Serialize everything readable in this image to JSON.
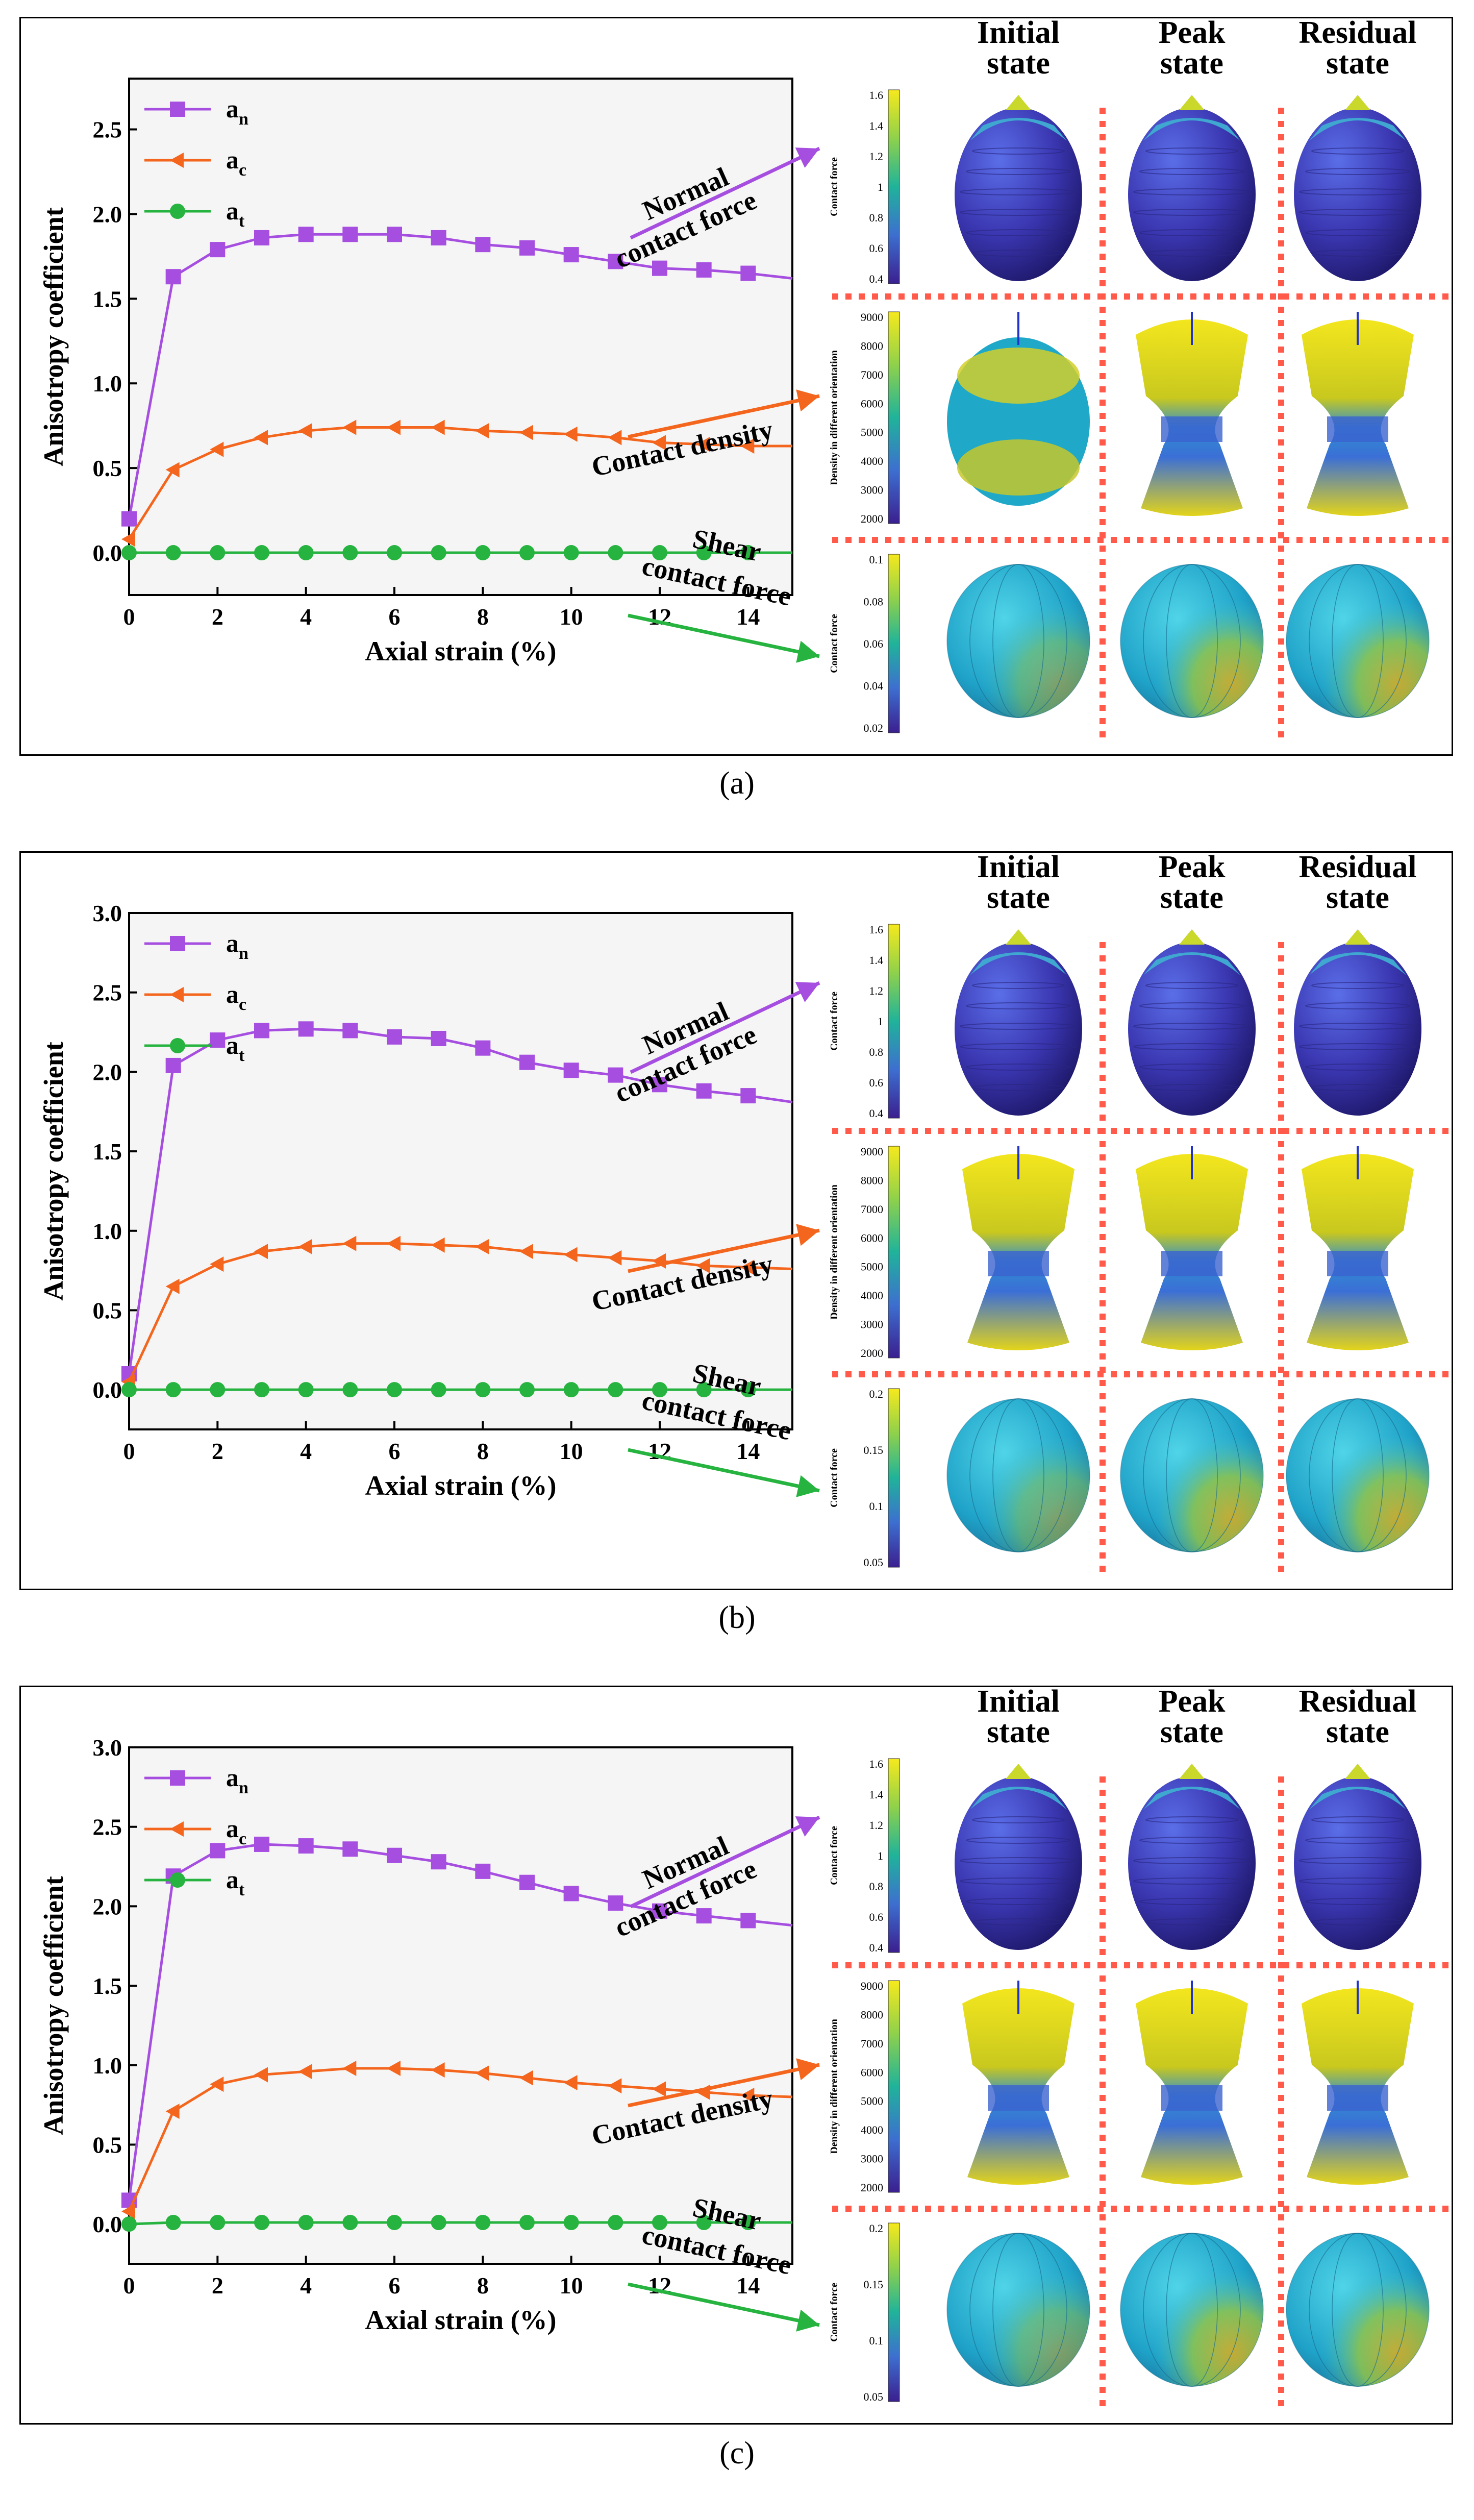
{
  "colors": {
    "an": "#a64ee0",
    "ac": "#f4661d",
    "at": "#26b33f",
    "grid_sep": "#ff5a4a",
    "plot_bg": "#f5f5f5"
  },
  "column_headers": [
    [
      "Initial",
      "state"
    ],
    [
      "Peak",
      "state"
    ],
    [
      "Residual",
      "state"
    ]
  ],
  "arrow_labels": {
    "normal": [
      "Normal",
      "contact force"
    ],
    "density": [
      "Contact density"
    ],
    "shear": [
      "Shear",
      "contact force"
    ]
  },
  "colorbar_titles": {
    "force": "Contact force",
    "density": "Density in different orientation"
  },
  "colorbars": [
    {
      "force_ticks": [
        "1.6",
        "1.4",
        "1.2",
        "1",
        "0.8",
        "0.6",
        "0.4"
      ],
      "density_ticks": [
        "9000",
        "8000",
        "7000",
        "6000",
        "5000",
        "4000",
        "3000",
        "2000"
      ],
      "shear_ticks": [
        "0.1",
        "0.08",
        "0.06",
        "0.04",
        "0.02"
      ]
    },
    {
      "force_ticks": [
        "1.6",
        "1.4",
        "1.2",
        "1",
        "0.8",
        "0.6",
        "0.4"
      ],
      "density_ticks": [
        "9000",
        "8000",
        "7000",
        "6000",
        "5000",
        "4000",
        "3000",
        "2000"
      ],
      "shear_ticks": [
        "0.2",
        "0.15",
        "0.1",
        "0.05"
      ]
    },
    {
      "force_ticks": [
        "1.6",
        "1.4",
        "1.2",
        "1",
        "0.8",
        "0.6",
        "0.4"
      ],
      "density_ticks": [
        "9000",
        "8000",
        "7000",
        "6000",
        "5000",
        "4000",
        "3000",
        "2000"
      ],
      "shear_ticks": [
        "0.2",
        "0.15",
        "0.1",
        "0.05"
      ]
    }
  ],
  "captions": [
    "(a)",
    "(b)",
    "(c)"
  ],
  "chart_data": [
    {
      "type": "line",
      "xlabel": "Axial strain (%)",
      "ylabel": "Anisotropy coefficient",
      "xlim": [
        0,
        15
      ],
      "ylim": [
        -0.25,
        2.8
      ],
      "xticks": [
        "0",
        "2",
        "4",
        "6",
        "8",
        "10",
        "12",
        "14"
      ],
      "yticks": [
        "0.0",
        "0.5",
        "1.0",
        "1.5",
        "2.0",
        "2.5"
      ],
      "x": [
        0,
        1,
        2,
        3,
        4,
        5,
        6,
        7,
        8,
        9,
        10,
        11,
        12,
        13,
        14,
        15
      ],
      "series": [
        {
          "name": "a_n",
          "sym": "a",
          "sub": "n",
          "marker": "square",
          "values": [
            0.2,
            1.63,
            1.79,
            1.86,
            1.88,
            1.88,
            1.88,
            1.86,
            1.82,
            1.8,
            1.76,
            1.72,
            1.68,
            1.67,
            1.65,
            1.62
          ]
        },
        {
          "name": "a_c",
          "sym": "a",
          "sub": "c",
          "marker": "triangle",
          "values": [
            0.08,
            0.49,
            0.61,
            0.68,
            0.72,
            0.74,
            0.74,
            0.74,
            0.72,
            0.71,
            0.7,
            0.68,
            0.65,
            0.64,
            0.63,
            0.63
          ]
        },
        {
          "name": "a_t",
          "sym": "a",
          "sub": "t",
          "marker": "circle",
          "values": [
            0.0,
            0.0,
            0.0,
            0.0,
            0.0,
            0.0,
            0.0,
            0.0,
            0.0,
            0.0,
            0.0,
            0.0,
            0.0,
            0.0,
            0.0,
            0.0
          ]
        }
      ]
    },
    {
      "type": "line",
      "xlabel": "Axial strain (%)",
      "ylabel": "Anisotropy coefficient",
      "xlim": [
        0,
        15
      ],
      "ylim": [
        -0.25,
        3.0
      ],
      "xticks": [
        "0",
        "2",
        "4",
        "6",
        "8",
        "10",
        "12",
        "14"
      ],
      "yticks": [
        "0.0",
        "0.5",
        "1.0",
        "1.5",
        "2.0",
        "2.5",
        "3.0"
      ],
      "x": [
        0,
        1,
        2,
        3,
        4,
        5,
        6,
        7,
        8,
        9,
        10,
        11,
        12,
        13,
        14,
        15
      ],
      "series": [
        {
          "name": "a_n",
          "sym": "a",
          "sub": "n",
          "marker": "square",
          "values": [
            0.1,
            2.04,
            2.2,
            2.26,
            2.27,
            2.26,
            2.22,
            2.21,
            2.15,
            2.06,
            2.01,
            1.98,
            1.92,
            1.88,
            1.85,
            1.81
          ]
        },
        {
          "name": "a_c",
          "sym": "a",
          "sub": "c",
          "marker": "triangle",
          "values": [
            0.05,
            0.65,
            0.79,
            0.87,
            0.9,
            0.92,
            0.92,
            0.91,
            0.9,
            0.87,
            0.85,
            0.83,
            0.81,
            0.78,
            0.77,
            0.76
          ]
        },
        {
          "name": "a_t",
          "sym": "a",
          "sub": "t",
          "marker": "circle",
          "values": [
            0.0,
            0.0,
            0.0,
            0.0,
            0.0,
            0.0,
            0.0,
            0.0,
            0.0,
            0.0,
            0.0,
            0.0,
            0.0,
            0.0,
            0.0,
            0.0
          ]
        }
      ]
    },
    {
      "type": "line",
      "xlabel": "Axial strain (%)",
      "ylabel": "Anisotropy coefficient",
      "xlim": [
        0,
        15
      ],
      "ylim": [
        -0.25,
        3.0
      ],
      "xticks": [
        "0",
        "2",
        "4",
        "6",
        "8",
        "10",
        "12",
        "14"
      ],
      "yticks": [
        "0.0",
        "0.5",
        "1.0",
        "1.5",
        "2.0",
        "2.5",
        "3.0"
      ],
      "x": [
        0,
        1,
        2,
        3,
        4,
        5,
        6,
        7,
        8,
        9,
        10,
        11,
        12,
        13,
        14,
        15
      ],
      "series": [
        {
          "name": "a_n",
          "sym": "a",
          "sub": "n",
          "marker": "square",
          "values": [
            0.15,
            2.19,
            2.35,
            2.39,
            2.38,
            2.36,
            2.32,
            2.28,
            2.22,
            2.15,
            2.08,
            2.02,
            1.97,
            1.94,
            1.91,
            1.88
          ]
        },
        {
          "name": "a_c",
          "sym": "a",
          "sub": "c",
          "marker": "triangle",
          "values": [
            0.08,
            0.71,
            0.88,
            0.94,
            0.96,
            0.98,
            0.98,
            0.97,
            0.95,
            0.92,
            0.89,
            0.87,
            0.85,
            0.83,
            0.81,
            0.8
          ]
        },
        {
          "name": "a_t",
          "sym": "a",
          "sub": "t",
          "marker": "circle",
          "values": [
            0.0,
            0.01,
            0.01,
            0.01,
            0.01,
            0.01,
            0.01,
            0.01,
            0.01,
            0.01,
            0.01,
            0.01,
            0.01,
            0.01,
            0.01,
            0.01
          ]
        }
      ]
    }
  ]
}
